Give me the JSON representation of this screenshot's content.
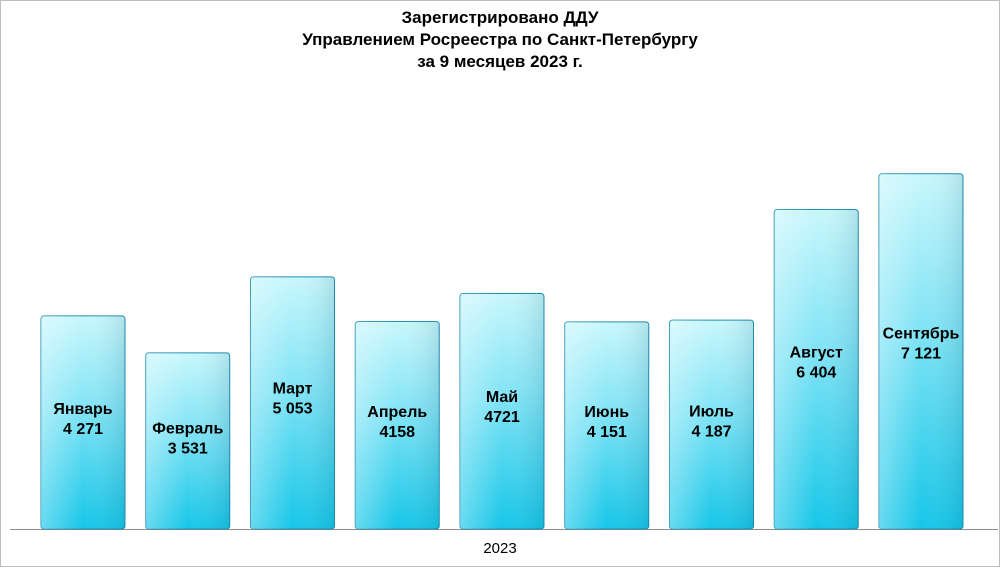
{
  "chart_data": {
    "type": "bar",
    "title_lines": [
      "Зарегистрировано ДДУ",
      "Управлением Росреестра по Санкт-Петербургу",
      "за 9 месяцев 2023 г."
    ],
    "x_category": "2023",
    "categories": [
      "Январь",
      "Февраль",
      "Март",
      "Апрель",
      "Май",
      "Июнь",
      "Июль",
      "Август",
      "Сентябрь"
    ],
    "values": [
      4271,
      3531,
      5053,
      4158,
      4721,
      4151,
      4187,
      6404,
      7121
    ],
    "value_labels": [
      "4 271",
      "3 531",
      "5 053",
      "4158",
      "4721",
      "4 151",
      "4 187",
      "6 404",
      "7 121"
    ],
    "ylim": [
      0,
      9000
    ],
    "grid": false,
    "legend": "none",
    "colors": {
      "bar_top": "#c8f7fc",
      "bar_bottom": "#16c6e8",
      "bar_edge": "#1f8fb2"
    }
  }
}
